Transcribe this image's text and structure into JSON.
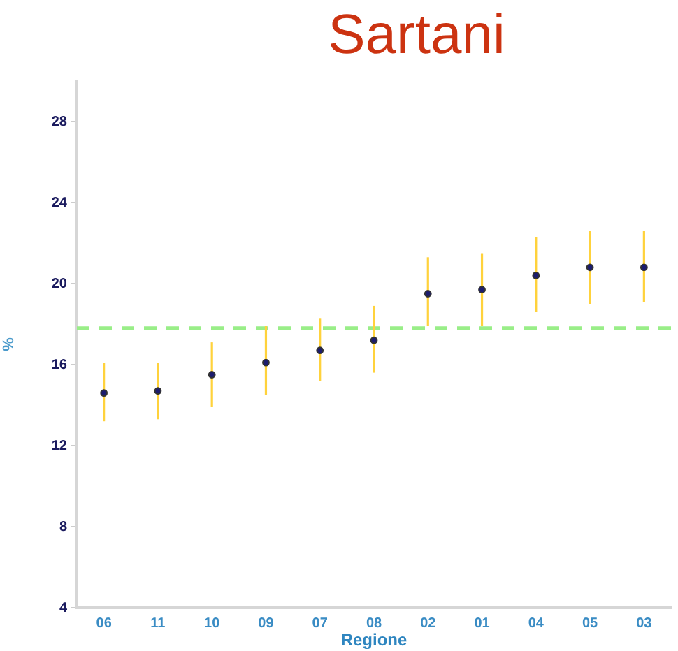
{
  "chart_data": {
    "type": "scatter",
    "title": "Sartani",
    "xlabel": "Regione",
    "ylabel": "%",
    "categories": [
      "06",
      "11",
      "10",
      "09",
      "07",
      "08",
      "02",
      "01",
      "04",
      "05",
      "03"
    ],
    "values": [
      14.6,
      14.7,
      15.5,
      16.1,
      16.7,
      17.2,
      19.5,
      19.7,
      20.4,
      20.8,
      20.8
    ],
    "errors": [
      [
        13.2,
        16.1
      ],
      [
        13.3,
        16.1
      ],
      [
        13.9,
        17.1
      ],
      [
        14.5,
        17.9
      ],
      [
        15.2,
        18.3
      ],
      [
        15.6,
        18.9
      ],
      [
        17.9,
        21.3
      ],
      [
        17.9,
        21.5
      ],
      [
        18.6,
        22.3
      ],
      [
        19.0,
        22.6
      ],
      [
        19.1,
        22.6
      ]
    ],
    "color": "#1c1c6e",
    "marker": "circle",
    "ylim": [
      4,
      30
    ],
    "yticks": [
      4,
      8,
      12,
      16,
      20,
      24,
      28
    ],
    "ref_lines": [
      {
        "axis": "y",
        "value": 17.8,
        "color": "#99ee88",
        "line_style": "dashed"
      }
    ],
    "grid": false,
    "legend": false
  }
}
